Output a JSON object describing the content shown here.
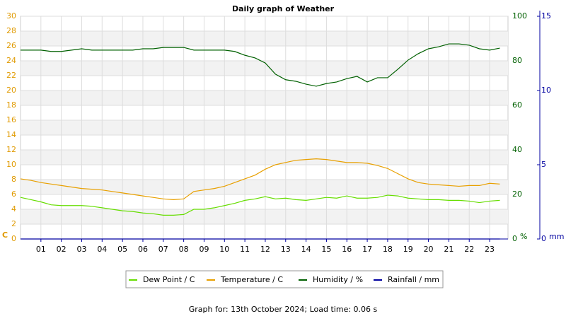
{
  "chart_data": {
    "type": "line",
    "title": "Daily graph of Weather",
    "xlim": [
      0,
      23.9
    ],
    "xticks": [
      {
        "value": 1,
        "label": "01"
      },
      {
        "value": 2,
        "label": "02"
      },
      {
        "value": 3,
        "label": "03"
      },
      {
        "value": 4,
        "label": "04"
      },
      {
        "value": 5,
        "label": "05"
      },
      {
        "value": 6,
        "label": "06"
      },
      {
        "value": 7,
        "label": "07"
      },
      {
        "value": 8,
        "label": "08"
      },
      {
        "value": 9,
        "label": "09"
      },
      {
        "value": 10,
        "label": "10"
      },
      {
        "value": 11,
        "label": "11"
      },
      {
        "value": 12,
        "label": "12"
      },
      {
        "value": 13,
        "label": "13"
      },
      {
        "value": 14,
        "label": "14"
      },
      {
        "value": 15,
        "label": "15"
      },
      {
        "value": 16,
        "label": "16"
      },
      {
        "value": 17,
        "label": "17"
      },
      {
        "value": 18,
        "label": "18"
      },
      {
        "value": 19,
        "label": "19"
      },
      {
        "value": 20,
        "label": "20"
      },
      {
        "value": 21,
        "label": "21"
      },
      {
        "value": 22,
        "label": "22"
      },
      {
        "value": 23,
        "label": "23"
      }
    ],
    "x": [
      0,
      0.5,
      1,
      1.5,
      2,
      2.5,
      3,
      3.5,
      4,
      4.5,
      5,
      5.5,
      6,
      6.5,
      7,
      7.5,
      8,
      8.5,
      9,
      9.5,
      10,
      10.5,
      11,
      11.5,
      12,
      12.5,
      13,
      13.5,
      14,
      14.5,
      15,
      15.5,
      16,
      16.5,
      17,
      17.5,
      18,
      18.5,
      19,
      19.5,
      20,
      20.5,
      21,
      21.5,
      22,
      22.5,
      23,
      23.5
    ],
    "ylim": [
      0,
      30
    ],
    "yticks": [
      0,
      2,
      4,
      6,
      8,
      10,
      12,
      14,
      16,
      18,
      20,
      22,
      24,
      26,
      28,
      30
    ],
    "ylabel": "C",
    "ycolor": "#e09a00",
    "y2lim": [
      0,
      100
    ],
    "y2ticks": [
      0,
      20,
      40,
      60,
      80,
      100
    ],
    "y2label": "%",
    "y2color": "#006000",
    "y3lim": [
      0,
      15
    ],
    "y3ticks": [
      0,
      5,
      10,
      15
    ],
    "y3label": "mm",
    "y3color": "#0000a0",
    "grid": true,
    "series": [
      {
        "name": "Dew Point / C",
        "color": "#66dd00",
        "values": [
          5.6,
          5.3,
          5.0,
          4.6,
          4.5,
          4.5,
          4.5,
          4.4,
          4.2,
          4.0,
          3.8,
          3.7,
          3.5,
          3.4,
          3.2,
          3.2,
          3.3,
          4.0,
          4.0,
          4.2,
          4.5,
          4.8,
          5.2,
          5.4,
          5.7,
          5.4,
          5.5,
          5.3,
          5.2,
          5.4,
          5.6,
          5.5,
          5.8,
          5.5,
          5.5,
          5.6,
          5.9,
          5.8,
          5.5,
          5.4,
          5.3,
          5.3,
          5.2,
          5.2,
          5.1,
          4.9,
          5.1,
          5.2
        ]
      },
      {
        "name": "Temperature / C",
        "color": "#e8a000",
        "values": [
          8.1,
          7.9,
          7.6,
          7.4,
          7.2,
          7.0,
          6.8,
          6.7,
          6.6,
          6.4,
          6.2,
          6.0,
          5.8,
          5.6,
          5.4,
          5.3,
          5.4,
          6.4,
          6.6,
          6.8,
          7.1,
          7.6,
          8.1,
          8.6,
          9.4,
          10.0,
          10.3,
          10.6,
          10.7,
          10.8,
          10.7,
          10.5,
          10.3,
          10.3,
          10.2,
          9.9,
          9.5,
          8.8,
          8.1,
          7.6,
          7.4,
          7.3,
          7.2,
          7.1,
          7.2,
          7.2,
          7.5,
          7.4
        ]
      },
      {
        "name": "Humidity / %",
        "color": "#006000",
        "axis": "y2",
        "values": [
          84.8,
          84.8,
          84.8,
          84.2,
          84.2,
          84.8,
          85.4,
          84.8,
          84.8,
          84.8,
          84.8,
          84.8,
          85.4,
          85.4,
          86.0,
          86.0,
          86.0,
          84.8,
          84.8,
          84.8,
          84.8,
          84.2,
          82.5,
          81.3,
          79.0,
          74.0,
          71.5,
          70.8,
          69.5,
          68.6,
          69.8,
          70.5,
          72.0,
          73.0,
          70.5,
          72.4,
          72.4,
          76.2,
          80.3,
          83.2,
          85.4,
          86.3,
          87.6,
          87.6,
          87.0,
          85.4,
          84.8,
          85.7
        ]
      },
      {
        "name": "Rainfall / mm",
        "color": "#0000a0",
        "axis": "y3",
        "values": [
          0,
          0,
          0,
          0,
          0,
          0,
          0,
          0,
          0,
          0,
          0,
          0,
          0,
          0,
          0,
          0,
          0,
          0,
          0,
          0,
          0,
          0,
          0,
          0,
          0,
          0,
          0,
          0,
          0,
          0,
          0,
          0,
          0,
          0,
          0,
          0,
          0,
          0,
          0,
          0,
          0,
          0,
          0,
          0,
          0,
          0,
          0,
          0
        ]
      }
    ],
    "footer": "Graph for: 13th October 2024; Load time: 0.06 s"
  }
}
